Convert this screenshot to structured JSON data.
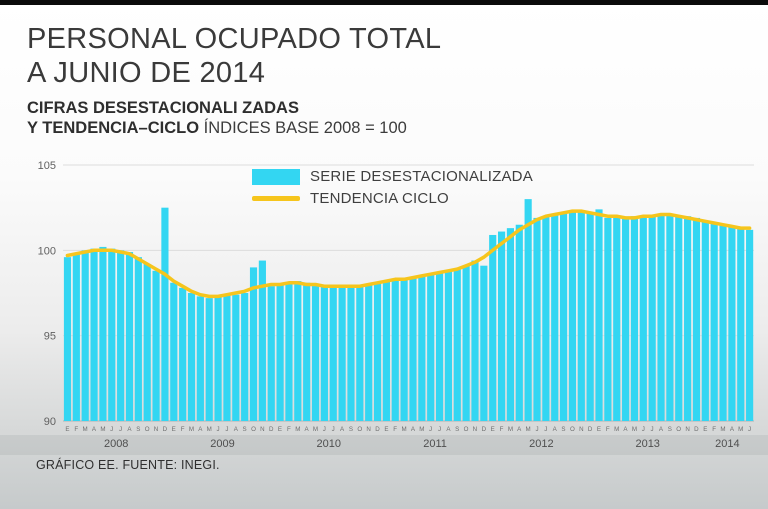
{
  "header": {
    "title_line1": "PERSONAL OCUPADO TOTAL",
    "title_line2": "A JUNIO DE 2014",
    "subtitle_bold_line1": "CIFRAS DESESTACIONALI ZADAS",
    "subtitle_bold_line2": "Y TENDENCIA–CICLO",
    "subtitle_regular": "ÍNDICES BASE 2008 = 100"
  },
  "footer": {
    "source": "GRÁFICO EE. FUENTE: INEGI."
  },
  "chart_data": {
    "type": "bar",
    "title": "PERSONAL OCUPADO TOTAL A JUNIO DE 2014",
    "subtitle": "CIFRAS DESESTACIONALIZADAS Y TENDENCIA-CICLO, ÍNDICES BASE 2008 = 100",
    "ylim": [
      90,
      105
    ],
    "yticks": [
      90,
      95,
      100,
      105
    ],
    "grid": "horizontal-subtle",
    "legend_position": "top-center",
    "month_letters": [
      "E",
      "F",
      "M",
      "A",
      "M",
      "J",
      "J",
      "A",
      "S",
      "O",
      "N",
      "D"
    ],
    "years": [
      {
        "label": "2008",
        "months": 12
      },
      {
        "label": "2009",
        "months": 12
      },
      {
        "label": "2010",
        "months": 12
      },
      {
        "label": "2011",
        "months": 12
      },
      {
        "label": "2012",
        "months": 12
      },
      {
        "label": "2013",
        "months": 12
      },
      {
        "label": "2014",
        "months": 6
      }
    ],
    "series": [
      {
        "name": "SERIE DESESTACIONALIZADA",
        "type": "bar",
        "color": "#33d6f2",
        "values": [
          99.6,
          99.8,
          100.0,
          100.1,
          100.2,
          100.1,
          100.0,
          99.9,
          99.6,
          99.2,
          98.8,
          102.5,
          98.1,
          97.8,
          97.5,
          97.3,
          97.2,
          97.3,
          97.4,
          97.4,
          97.5,
          99.0,
          99.4,
          97.9,
          98.0,
          98.1,
          98.2,
          98.1,
          98.0,
          97.9,
          97.8,
          97.8,
          97.9,
          97.9,
          98.0,
          98.1,
          98.2,
          98.3,
          98.4,
          98.4,
          98.5,
          98.6,
          98.7,
          98.8,
          98.9,
          99.1,
          99.4,
          99.1,
          100.9,
          101.1,
          101.3,
          101.5,
          103.0,
          101.9,
          102.0,
          102.1,
          102.2,
          102.3,
          102.3,
          102.2,
          102.4,
          101.9,
          101.9,
          101.9,
          102.0,
          102.0,
          102.1,
          102.1,
          102.1,
          102.0,
          102.0,
          101.9,
          101.7,
          101.6,
          101.5,
          101.4,
          101.3,
          101.2
        ]
      },
      {
        "name": "TENDENCIA CICLO",
        "type": "line",
        "color": "#f6c51c",
        "values": [
          99.7,
          99.8,
          99.9,
          100.0,
          100.0,
          100.0,
          99.9,
          99.8,
          99.5,
          99.2,
          98.9,
          98.6,
          98.2,
          97.9,
          97.6,
          97.4,
          97.3,
          97.3,
          97.4,
          97.5,
          97.6,
          97.8,
          97.9,
          98.0,
          98.0,
          98.1,
          98.1,
          98.0,
          98.0,
          97.9,
          97.9,
          97.9,
          97.9,
          97.9,
          98.0,
          98.1,
          98.2,
          98.3,
          98.3,
          98.4,
          98.5,
          98.6,
          98.7,
          98.8,
          98.9,
          99.1,
          99.3,
          99.6,
          100.0,
          100.4,
          100.8,
          101.2,
          101.5,
          101.8,
          102.0,
          102.1,
          102.2,
          102.3,
          102.3,
          102.2,
          102.1,
          102.0,
          102.0,
          101.9,
          101.9,
          102.0,
          102.0,
          102.1,
          102.1,
          102.0,
          101.9,
          101.8,
          101.7,
          101.6,
          101.5,
          101.4,
          101.3,
          101.3
        ]
      }
    ]
  }
}
